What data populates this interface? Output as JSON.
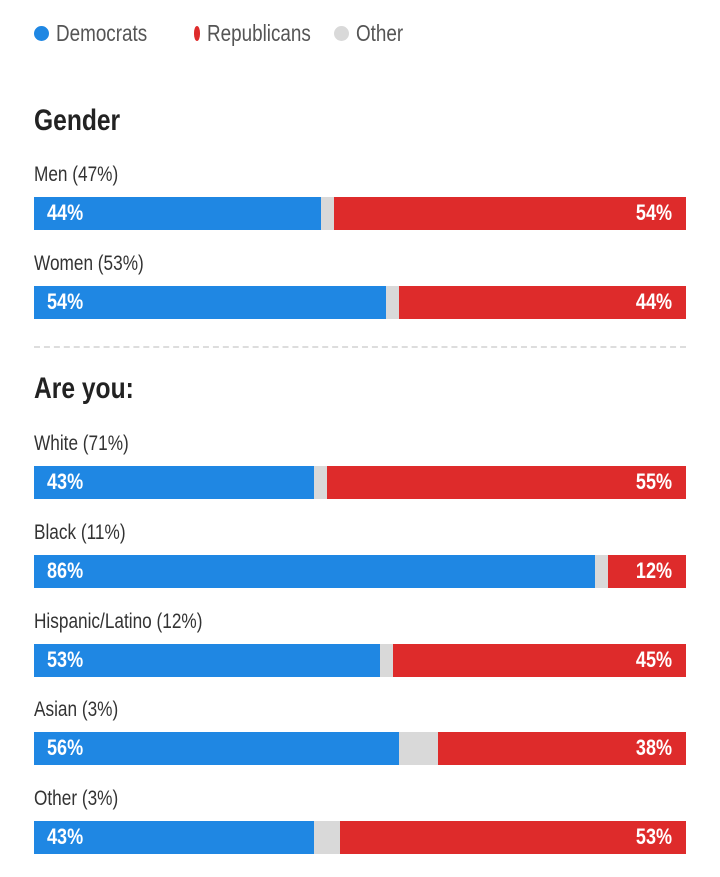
{
  "chart_data": {
    "type": "bar",
    "stacked": true,
    "orientation": "horizontal",
    "legend": {
      "position": "top-left",
      "items": [
        {
          "name": "Democrats",
          "color": "#1f87e3"
        },
        {
          "name": "Republicans",
          "color": "#de2b2b"
        },
        {
          "name": "Other",
          "color": "#d9d9d9"
        }
      ]
    },
    "sections": [
      {
        "title": "Gender",
        "rows": [
          {
            "label": "Men (47%)",
            "dem": 44,
            "rep": 54
          },
          {
            "label": "Women (53%)",
            "dem": 54,
            "rep": 44
          }
        ]
      },
      {
        "title": "Are you:",
        "rows": [
          {
            "label": "White (71%)",
            "dem": 43,
            "rep": 55
          },
          {
            "label": "Black (11%)",
            "dem": 86,
            "rep": 12
          },
          {
            "label": "Hispanic/Latino (12%)",
            "dem": 53,
            "rep": 45
          },
          {
            "label": "Asian (3%)",
            "dem": 56,
            "rep": 38
          },
          {
            "label": "Other (3%)",
            "dem": 43,
            "rep": 53
          }
        ]
      }
    ]
  }
}
